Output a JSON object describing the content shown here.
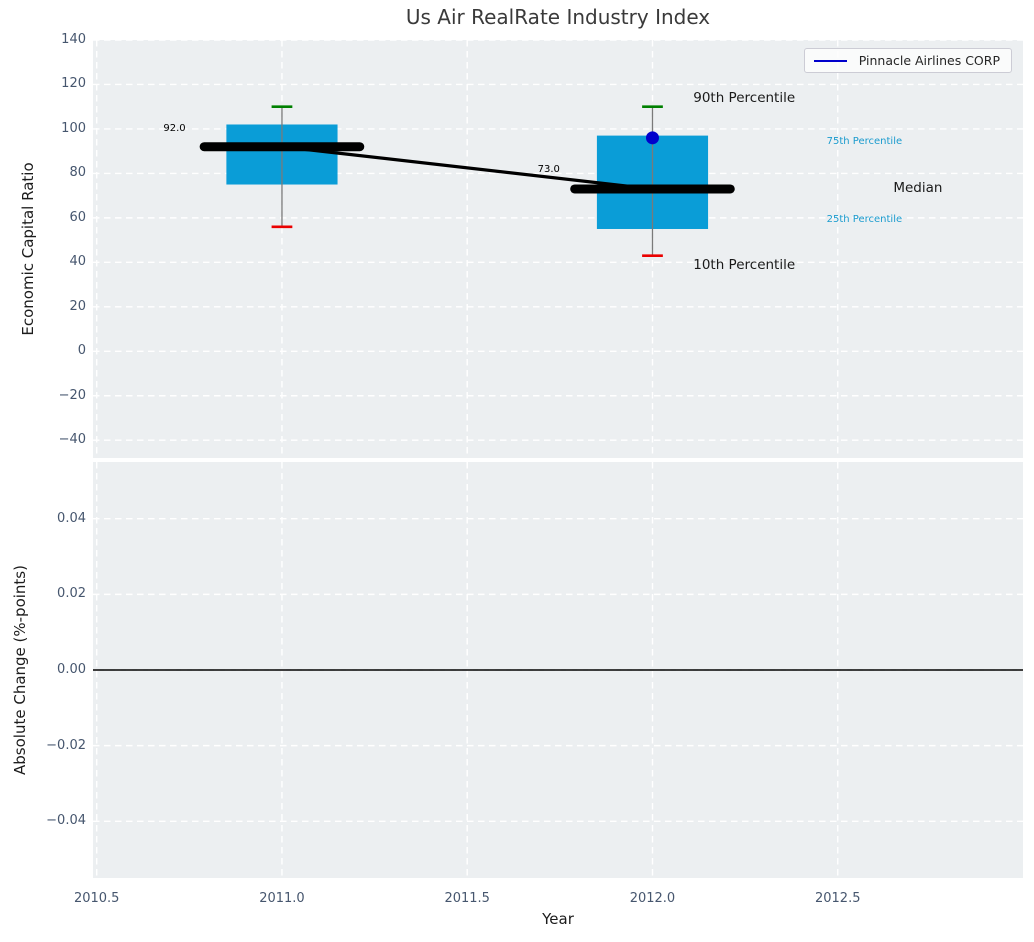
{
  "figure": {
    "title": "Us Air RealRate Industry Index"
  },
  "colors": {
    "figure_bg": "#ffffff",
    "axes_bg": "#eceff1",
    "grid": "#ffffff",
    "box_fill": "#0a9dd7",
    "whisker": "#7a7a7a",
    "cap_top": "#008000",
    "cap_bottom": "#ea0000",
    "median": "#000000",
    "trend": "#000000",
    "company": "#0000cc",
    "zero_line": "#000000",
    "tick_text": "#46566e",
    "label_text": "#1c1c1c",
    "title_text": "#3a3a3a",
    "percentile_cyan": "#1a9bce",
    "percentile_black": "#1a1a1a"
  },
  "chart_data": [
    {
      "type": "boxplot",
      "title": "Us Air RealRate Industry Index",
      "ylabel": "Economic Capital Ratio",
      "xlim": [
        2010.49,
        2013.0
      ],
      "ylim": [
        -48,
        140
      ],
      "grid": true,
      "legend": {
        "entries": [
          "Pinnacle Airlines CORP"
        ],
        "position": "upper right"
      },
      "yticks": [
        {
          "v": 140,
          "label": "140"
        },
        {
          "v": 120,
          "label": "120"
        },
        {
          "v": 100,
          "label": "100"
        },
        {
          "v": 80,
          "label": "80"
        },
        {
          "v": 60,
          "label": "60"
        },
        {
          "v": 40,
          "label": "40"
        },
        {
          "v": 20,
          "label": "20"
        },
        {
          "v": 0,
          "label": "0"
        },
        {
          "v": -20,
          "label": "−20"
        },
        {
          "v": -40,
          "label": "−40"
        }
      ],
      "xgridlines": [
        2010.5,
        2011.0,
        2011.5,
        2012.0,
        2012.5
      ],
      "boxes": [
        {
          "x": 2011,
          "p10": 56,
          "p25": 75,
          "median": 92,
          "p75": 102,
          "p90": 110
        },
        {
          "x": 2012,
          "p10": 43,
          "p25": 55,
          "median": 73,
          "p75": 97,
          "p90": 110
        }
      ],
      "median_trend": {
        "x": [
          2011,
          2012
        ],
        "y": [
          92,
          73
        ]
      },
      "company_series": {
        "name": "Pinnacle Airlines CORP",
        "points": [
          {
            "x": 2012,
            "y": 96
          }
        ]
      },
      "annotations": [
        {
          "text": "92.0",
          "x": 2010.71,
          "y": 100,
          "size": 10,
          "color": "#000000",
          "align": "center"
        },
        {
          "text": "73.0",
          "x": 2011.72,
          "y": 81.5,
          "size": 10,
          "color": "#000000",
          "align": "center"
        },
        {
          "text": "90th Percentile",
          "x": 2012.11,
          "y": 114,
          "size": 13.5,
          "color": "#1a1a1a",
          "align": "left"
        },
        {
          "text": "75th Percentile",
          "x": 2012.47,
          "y": 94,
          "size": 10,
          "color": "#1a9bce",
          "align": "left"
        },
        {
          "text": "Median",
          "x": 2012.65,
          "y": 73.5,
          "size": 13.5,
          "color": "#1a1a1a",
          "align": "left"
        },
        {
          "text": "25th Percentile",
          "x": 2012.47,
          "y": 59,
          "size": 10,
          "color": "#1a9bce",
          "align": "left"
        },
        {
          "text": "10th Percentile",
          "x": 2012.11,
          "y": 39,
          "size": 13.5,
          "color": "#1a1a1a",
          "align": "left"
        }
      ]
    },
    {
      "type": "line",
      "xlabel": "Year",
      "ylabel": "Absolute Change (%-points)",
      "xlim": [
        2010.49,
        2013.0
      ],
      "ylim": [
        -0.055,
        0.055
      ],
      "grid": true,
      "series": [],
      "zero_line": 0.0,
      "yticks": [
        {
          "v": 0.04,
          "label": "0.04"
        },
        {
          "v": 0.02,
          "label": "0.02"
        },
        {
          "v": 0.0,
          "label": "0.00"
        },
        {
          "v": -0.02,
          "label": "−0.02"
        },
        {
          "v": -0.04,
          "label": "−0.04"
        }
      ],
      "xticks": [
        {
          "v": 2010.5,
          "label": "2010.5"
        },
        {
          "v": 2011.0,
          "label": "2011.0"
        },
        {
          "v": 2011.5,
          "label": "2011.5"
        },
        {
          "v": 2012.0,
          "label": "2012.0"
        },
        {
          "v": 2012.5,
          "label": "2012.5"
        }
      ]
    }
  ]
}
